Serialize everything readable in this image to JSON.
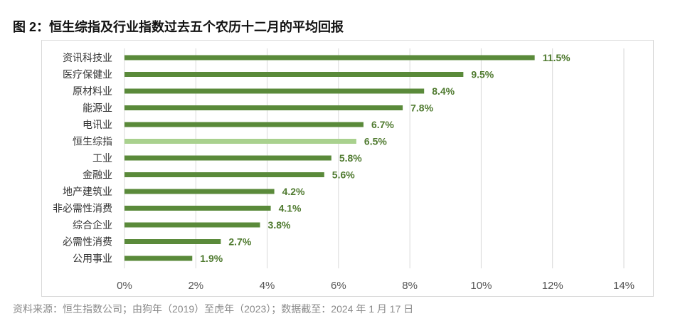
{
  "title": "图 2：恒生综指及行业指数过去五个农历十二月的平均回报",
  "source": "资料来源：恒生指数公司；由狗年（2019）至虎年（2023）；数据截至：2024 年 1 月 17 日",
  "colors": {
    "bar": "#5a8a3a",
    "highlight": "#a9d18e",
    "label": "#4f7a2f",
    "grid": "#d9d9d9",
    "axis_text": "#555555"
  },
  "chart_data": {
    "type": "bar",
    "orientation": "horizontal",
    "categories": [
      "资讯科技业",
      "医疗保健业",
      "原材料业",
      "能源业",
      "电讯业",
      "恒生综指",
      "工业",
      "金融业",
      "地产建筑业",
      "非必需性消费",
      "综合企业",
      "必需性消费",
      "公用事业"
    ],
    "values": [
      11.5,
      9.5,
      8.4,
      7.8,
      6.7,
      6.5,
      5.8,
      5.6,
      4.2,
      4.1,
      3.8,
      2.7,
      1.9
    ],
    "value_labels": [
      "11.5%",
      "9.5%",
      "8.4%",
      "7.8%",
      "6.7%",
      "6.5%",
      "5.8%",
      "5.6%",
      "4.2%",
      "4.1%",
      "3.8%",
      "2.7%",
      "1.9%"
    ],
    "highlight_category": "恒生综指",
    "xlim": [
      0,
      14
    ],
    "xticks": [
      0,
      2,
      4,
      6,
      8,
      10,
      12,
      14
    ],
    "xtick_labels": [
      "0%",
      "2%",
      "4%",
      "6%",
      "8%",
      "10%",
      "12%",
      "14%"
    ],
    "grid": true,
    "xlabel": "",
    "ylabel": ""
  }
}
